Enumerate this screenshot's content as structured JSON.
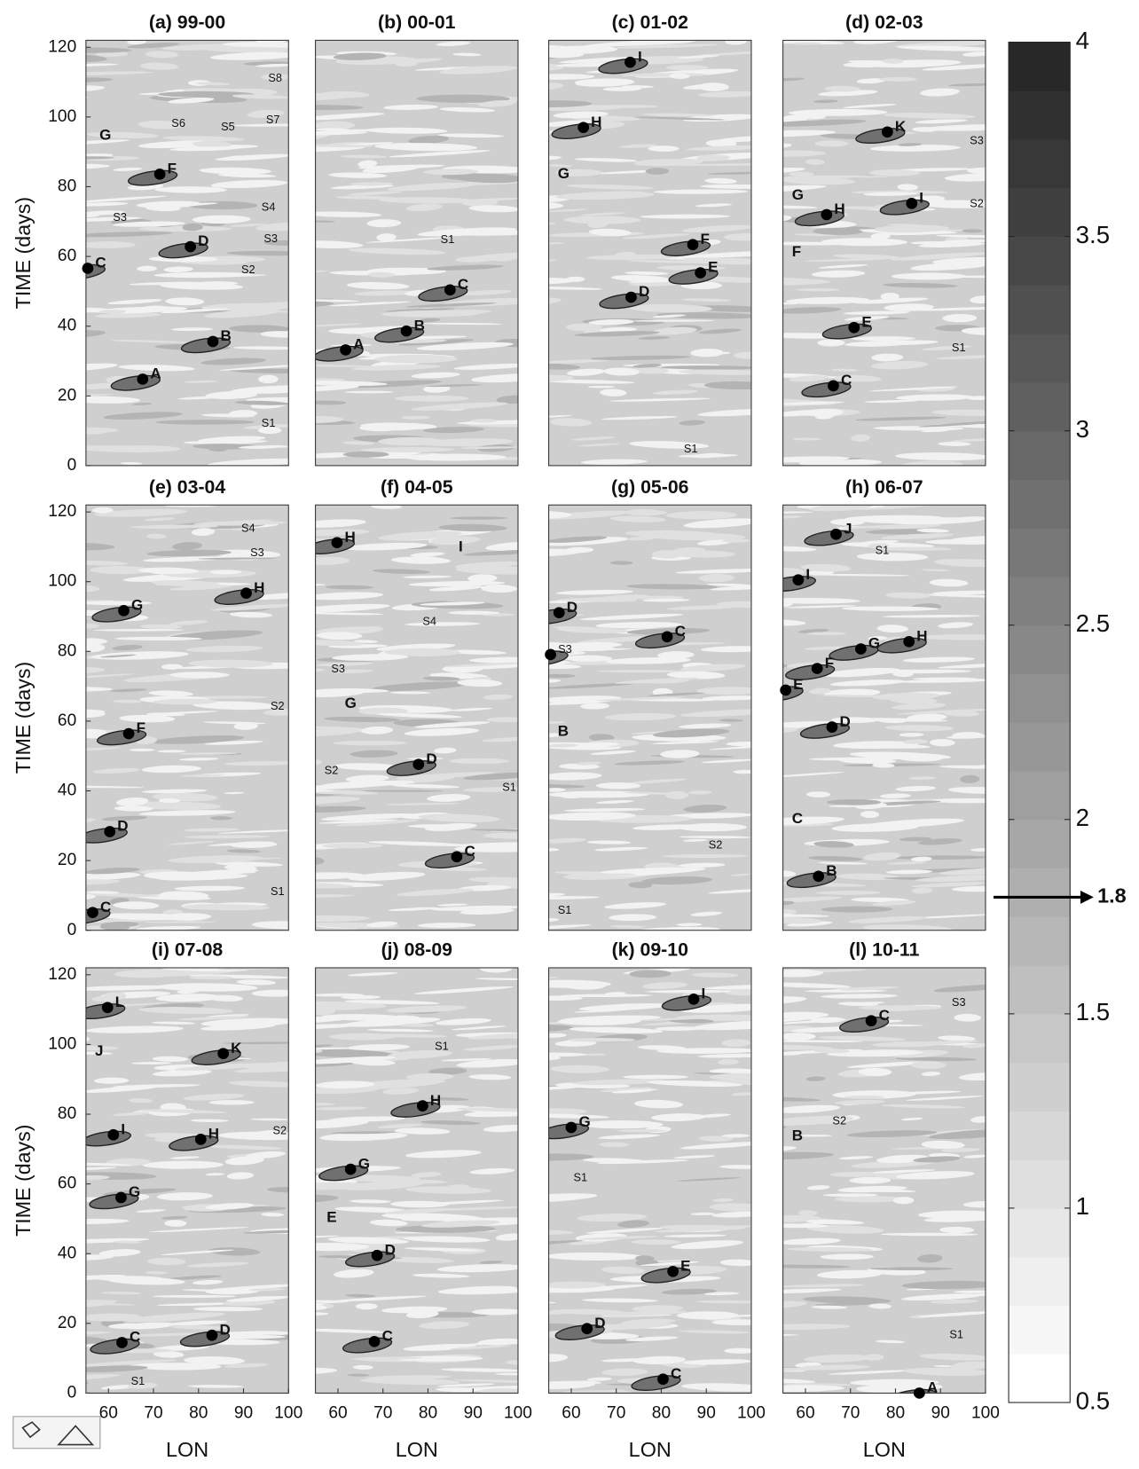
{
  "chart_data": [
    {
      "type": "heatmap",
      "title": "(a) 99-00",
      "ylabel": "TIME (days)",
      "xlim": [
        55,
        100
      ],
      "ylim": [
        0,
        122
      ],
      "yticks": [
        0,
        20,
        40,
        60,
        80,
        100,
        120
      ],
      "events": [
        {
          "label": "G",
          "x": 58,
          "y": 94.6,
          "dot": false
        },
        {
          "label": "F",
          "x": 71.4,
          "y": 83.6,
          "dot": true
        },
        {
          "label": "S6",
          "x": 74,
          "y": 98,
          "dot": false
        },
        {
          "label": "S5",
          "x": 85,
          "y": 97,
          "dot": false
        },
        {
          "label": "S7",
          "x": 95,
          "y": 99,
          "dot": false
        },
        {
          "label": "S8",
          "x": 95.5,
          "y": 111,
          "dot": false
        },
        {
          "label": "S4",
          "x": 94,
          "y": 74,
          "dot": false
        },
        {
          "label": "S3",
          "x": 61,
          "y": 71,
          "dot": false
        },
        {
          "label": "S3",
          "x": 94.5,
          "y": 65,
          "dot": false
        },
        {
          "label": "D",
          "x": 78.2,
          "y": 62.8,
          "dot": true
        },
        {
          "label": "C",
          "x": 55.4,
          "y": 56.6,
          "dot": true
        },
        {
          "label": "S2",
          "x": 89.5,
          "y": 56,
          "dot": false
        },
        {
          "label": "B",
          "x": 83.2,
          "y": 35.6,
          "dot": true
        },
        {
          "label": "A",
          "x": 67.6,
          "y": 24.8,
          "dot": true
        },
        {
          "label": "S1",
          "x": 94,
          "y": 12,
          "dot": false
        }
      ]
    },
    {
      "type": "heatmap",
      "title": "(b) 00-01",
      "xlim": [
        55,
        100
      ],
      "ylim": [
        0,
        122
      ],
      "events": [
        {
          "label": "S1",
          "x": 82.8,
          "y": 64.7,
          "dot": false
        },
        {
          "label": "C",
          "x": 84.9,
          "y": 50.4,
          "dot": true
        },
        {
          "label": "B",
          "x": 75.2,
          "y": 38.6,
          "dot": true
        },
        {
          "label": "A",
          "x": 61.7,
          "y": 33.2,
          "dot": true
        }
      ]
    },
    {
      "type": "heatmap",
      "title": "(c) 01-02",
      "xlim": [
        55,
        100
      ],
      "ylim": [
        0,
        122
      ],
      "events": [
        {
          "label": "I",
          "x": 73.1,
          "y": 115.7,
          "dot": true
        },
        {
          "label": "H",
          "x": 62.7,
          "y": 97,
          "dot": true
        },
        {
          "label": "G",
          "x": 57,
          "y": 83.6,
          "dot": false
        },
        {
          "label": "F",
          "x": 87,
          "y": 63.4,
          "dot": true
        },
        {
          "label": "E",
          "x": 88.7,
          "y": 55.3,
          "dot": true
        },
        {
          "label": "D",
          "x": 73.3,
          "y": 48.3,
          "dot": true
        },
        {
          "label": "S1",
          "x": 85,
          "y": 4.6,
          "dot": false
        }
      ]
    },
    {
      "type": "heatmap",
      "title": "(d) 02-03",
      "xlim": [
        55,
        100
      ],
      "ylim": [
        0,
        122
      ],
      "events": [
        {
          "label": "K",
          "x": 78.2,
          "y": 95.7,
          "dot": true
        },
        {
          "label": "S3",
          "x": 96.5,
          "y": 93,
          "dot": false
        },
        {
          "label": "G",
          "x": 57,
          "y": 77.4,
          "dot": false
        },
        {
          "label": "H",
          "x": 64.7,
          "y": 72,
          "dot": true
        },
        {
          "label": "I",
          "x": 83.6,
          "y": 75.2,
          "dot": true
        },
        {
          "label": "S2",
          "x": 96.5,
          "y": 75,
          "dot": false
        },
        {
          "label": "F",
          "x": 57,
          "y": 61.2,
          "dot": false
        },
        {
          "label": "E",
          "x": 70.8,
          "y": 39.6,
          "dot": true
        },
        {
          "label": "S1",
          "x": 92.5,
          "y": 33.7,
          "dot": false
        },
        {
          "label": "C",
          "x": 66.2,
          "y": 22.9,
          "dot": true
        }
      ]
    },
    {
      "type": "heatmap",
      "title": "(e) 03-04",
      "ylabel": "TIME (days)",
      "xlim": [
        55,
        100
      ],
      "ylim": [
        0,
        122
      ],
      "yticks": [
        0,
        20,
        40,
        60,
        80,
        100,
        120
      ],
      "events": [
        {
          "label": "S4",
          "x": 89.5,
          "y": 115.2,
          "dot": false
        },
        {
          "label": "S3",
          "x": 91.5,
          "y": 108.2,
          "dot": false
        },
        {
          "label": "H",
          "x": 90.6,
          "y": 96.7,
          "dot": true
        },
        {
          "label": "G",
          "x": 63.4,
          "y": 91.7,
          "dot": true
        },
        {
          "label": "S2",
          "x": 96,
          "y": 64.1,
          "dot": false
        },
        {
          "label": "F",
          "x": 64.5,
          "y": 56.4,
          "dot": true
        },
        {
          "label": "D",
          "x": 60.3,
          "y": 28.3,
          "dot": true
        },
        {
          "label": "S1",
          "x": 96,
          "y": 11,
          "dot": false
        },
        {
          "label": "C",
          "x": 56.5,
          "y": 5.1,
          "dot": true
        }
      ]
    },
    {
      "type": "heatmap",
      "title": "(f) 04-05",
      "xlim": [
        55,
        100
      ],
      "ylim": [
        0,
        122
      ],
      "events": [
        {
          "label": "H",
          "x": 59.8,
          "y": 111.2,
          "dot": true
        },
        {
          "label": "I",
          "x": 86.8,
          "y": 109.8,
          "dot": false
        },
        {
          "label": "S4",
          "x": 78.8,
          "y": 88.5,
          "dot": false
        },
        {
          "label": "S3",
          "x": 58.5,
          "y": 74.8,
          "dot": false
        },
        {
          "label": "G",
          "x": 61.5,
          "y": 64.9,
          "dot": false
        },
        {
          "label": "D",
          "x": 77.9,
          "y": 47.6,
          "dot": true
        },
        {
          "label": "S2",
          "x": 57,
          "y": 45.7,
          "dot": false
        },
        {
          "label": "S1",
          "x": 96.5,
          "y": 40.9,
          "dot": false
        },
        {
          "label": "C",
          "x": 86.4,
          "y": 21.1,
          "dot": true
        }
      ]
    },
    {
      "type": "heatmap",
      "title": "(g) 05-06",
      "xlim": [
        55,
        100
      ],
      "ylim": [
        0,
        122
      ],
      "events": [
        {
          "label": "D",
          "x": 57.3,
          "y": 91.1,
          "dot": true
        },
        {
          "label": "C",
          "x": 81.3,
          "y": 84.2,
          "dot": true
        },
        {
          "label": "S3",
          "x": 55.4,
          "y": 79.1,
          "dot": true
        },
        {
          "label": "B",
          "x": 57,
          "y": 56.9,
          "dot": false
        },
        {
          "label": "S2",
          "x": 90.5,
          "y": 24.3,
          "dot": false
        },
        {
          "label": "S1",
          "x": 57,
          "y": 5.6,
          "dot": false
        }
      ]
    },
    {
      "type": "heatmap",
      "title": "(h) 06-07",
      "xlim": [
        55,
        100
      ],
      "ylim": [
        0,
        122
      ],
      "events": [
        {
          "label": "J",
          "x": 66.8,
          "y": 113.6,
          "dot": true
        },
        {
          "label": "S1",
          "x": 75.5,
          "y": 108.8,
          "dot": false
        },
        {
          "label": "I",
          "x": 58.4,
          "y": 100.5,
          "dot": true
        },
        {
          "label": "G",
          "x": 72.3,
          "y": 80.7,
          "dot": true
        },
        {
          "label": "H",
          "x": 83,
          "y": 82.8,
          "dot": true
        },
        {
          "label": "F",
          "x": 62.6,
          "y": 75.1,
          "dot": true
        },
        {
          "label": "E",
          "x": 55.6,
          "y": 68.9,
          "dot": true
        },
        {
          "label": "D",
          "x": 65.9,
          "y": 58.3,
          "dot": true
        },
        {
          "label": "C",
          "x": 57,
          "y": 31.8,
          "dot": false
        },
        {
          "label": "B",
          "x": 62.9,
          "y": 15.5,
          "dot": true
        }
      ]
    },
    {
      "type": "heatmap",
      "title": "(i) 07-08",
      "ylabel": "TIME (days)",
      "xlabel": "LON",
      "xlim": [
        55,
        100
      ],
      "ylim": [
        0,
        122
      ],
      "xticks": [
        60,
        70,
        80,
        90,
        100
      ],
      "yticks": [
        0,
        20,
        40,
        60,
        80,
        100,
        120
      ],
      "events": [
        {
          "label": "L",
          "x": 59.8,
          "y": 110.6,
          "dot": true
        },
        {
          "label": "J",
          "x": 57,
          "y": 98,
          "dot": false
        },
        {
          "label": "K",
          "x": 85.5,
          "y": 97.4,
          "dot": true
        },
        {
          "label": "I",
          "x": 61.1,
          "y": 74.1,
          "dot": true
        },
        {
          "label": "H",
          "x": 80.5,
          "y": 72.8,
          "dot": true
        },
        {
          "label": "S2",
          "x": 96.5,
          "y": 75.2,
          "dot": false
        },
        {
          "label": "G",
          "x": 62.8,
          "y": 56.1,
          "dot": true
        },
        {
          "label": "D",
          "x": 83,
          "y": 16.6,
          "dot": true
        },
        {
          "label": "C",
          "x": 63,
          "y": 14.5,
          "dot": true
        },
        {
          "label": "S1",
          "x": 65,
          "y": 3.2,
          "dot": false
        }
      ]
    },
    {
      "type": "heatmap",
      "title": "(j) 08-09",
      "xlabel": "LON",
      "xlim": [
        55,
        100
      ],
      "ylim": [
        0,
        122
      ],
      "xticks": [
        60,
        70,
        80,
        90,
        100
      ],
      "events": [
        {
          "label": "S1",
          "x": 81.5,
          "y": 99.3,
          "dot": false
        },
        {
          "label": "H",
          "x": 78.8,
          "y": 82.4,
          "dot": true
        },
        {
          "label": "G",
          "x": 62.8,
          "y": 64.2,
          "dot": true
        },
        {
          "label": "E",
          "x": 57.5,
          "y": 50.2,
          "dot": false
        },
        {
          "label": "D",
          "x": 68.7,
          "y": 39.5,
          "dot": true
        },
        {
          "label": "C",
          "x": 68.1,
          "y": 14.8,
          "dot": true
        }
      ]
    },
    {
      "type": "heatmap",
      "title": "(k) 09-10",
      "xlabel": "LON",
      "xlim": [
        55,
        100
      ],
      "ylim": [
        0,
        122
      ],
      "xticks": [
        60,
        70,
        80,
        90,
        100
      ],
      "events": [
        {
          "label": "I",
          "x": 87.2,
          "y": 113,
          "dot": true
        },
        {
          "label": "G",
          "x": 60,
          "y": 76.2,
          "dot": true
        },
        {
          "label": "S1",
          "x": 60.5,
          "y": 61.7,
          "dot": false
        },
        {
          "label": "E",
          "x": 82.6,
          "y": 34.9,
          "dot": true
        },
        {
          "label": "D",
          "x": 63.5,
          "y": 18.5,
          "dot": true
        },
        {
          "label": "C",
          "x": 80.4,
          "y": 4,
          "dot": true
        }
      ]
    },
    {
      "type": "heatmap",
      "title": "(l) 10-11",
      "xlabel": "LON",
      "xlim": [
        55,
        100
      ],
      "ylim": [
        0,
        122
      ],
      "xticks": [
        60,
        70,
        80,
        90,
        100
      ],
      "events": [
        {
          "label": "C",
          "x": 74.6,
          "y": 106.8,
          "dot": true
        },
        {
          "label": "S3",
          "x": 92.5,
          "y": 111.9,
          "dot": false
        },
        {
          "label": "S2",
          "x": 66,
          "y": 77.9,
          "dot": false
        },
        {
          "label": "B",
          "x": 57,
          "y": 73.6,
          "dot": false
        },
        {
          "label": "S1",
          "x": 92,
          "y": 16.6,
          "dot": false
        },
        {
          "label": "A",
          "x": 85.3,
          "y": 0,
          "dot": true
        }
      ]
    }
  ],
  "colorbar": {
    "lim": [
      0.5,
      4
    ],
    "ticks": [
      4,
      3.5,
      3,
      2.5,
      2,
      1.5,
      1,
      0.5
    ],
    "threshold": 1.8
  }
}
